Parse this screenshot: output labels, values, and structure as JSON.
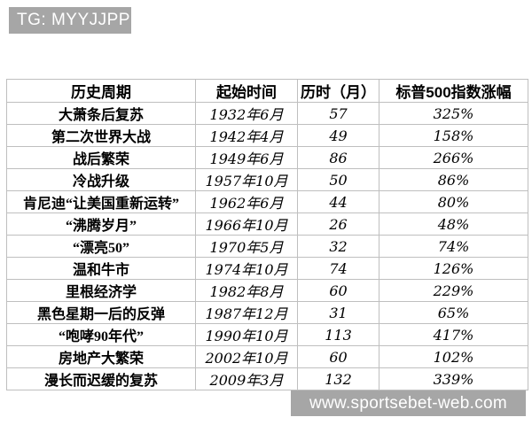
{
  "badges": {
    "tg_label": "TG: MYYJJPP",
    "watermark_label": "www.sportsebet-web.com"
  },
  "table": {
    "headers": [
      "历史周期",
      "起始时间",
      "历时（月）",
      "标普500指数涨幅"
    ],
    "rows": [
      [
        "大萧条后复苏",
        "1932年6月",
        "57",
        "325%"
      ],
      [
        "第二次世界大战",
        "1942年4月",
        "49",
        "158%"
      ],
      [
        "战后繁荣",
        "1949年6月",
        "86",
        "266%"
      ],
      [
        "冷战升级",
        "1957年10月",
        "50",
        "86%"
      ],
      [
        "肯尼迪“让美国重新运转”",
        "1962年6月",
        "44",
        "80%"
      ],
      [
        "“沸腾岁月”",
        "1966年10月",
        "26",
        "48%"
      ],
      [
        "“漂亮50”",
        "1970年5月",
        "32",
        "74%"
      ],
      [
        "温和牛市",
        "1974年10月",
        "74",
        "126%"
      ],
      [
        "里根经济学",
        "1982年8月",
        "60",
        "229%"
      ],
      [
        "黑色星期一后的反弹",
        "1987年12月",
        "31",
        "65%"
      ],
      [
        "“咆哮90年代”",
        "1990年10月",
        "113",
        "417%"
      ],
      [
        "房地产大繁荣",
        "2002年10月",
        "60",
        "102%"
      ],
      [
        "漫长而迟缓的复苏",
        "2009年3月",
        "132",
        "339%"
      ]
    ]
  },
  "colors": {
    "badge_bg": "#a6a6a6",
    "badge_text": "#ffffff",
    "grid_line": "#bfbfbf",
    "text": "#000000",
    "page_bg": "#ffffff"
  }
}
